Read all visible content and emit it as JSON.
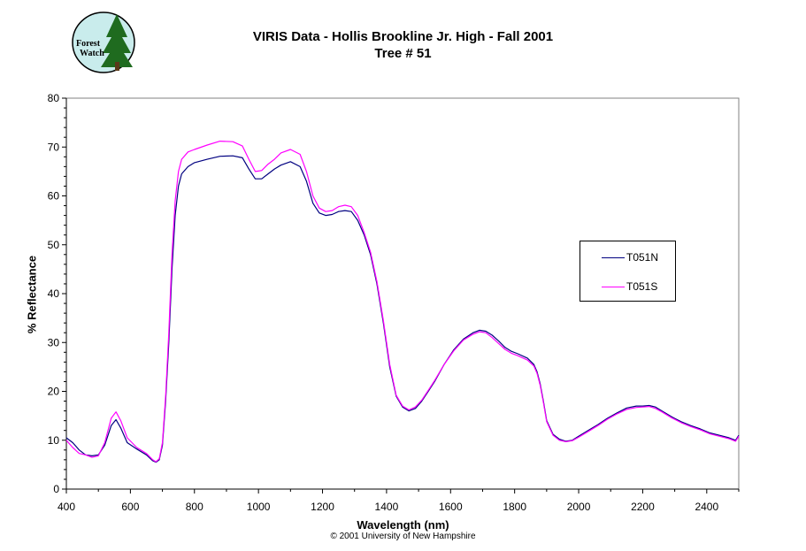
{
  "logo": {
    "text_line1": "Forest",
    "text_line2": "Watch"
  },
  "colors": {
    "T051N": "#000080",
    "T051S": "#ff00ff",
    "logo_bg": "#c9ecec",
    "tree": "#1f6b1f"
  },
  "chart_data": {
    "type": "line",
    "title": "VIRIS Data - Hollis Brookline Jr. High - Fall 2001",
    "subtitle": "Tree # 51",
    "xlabel": "Wavelength (nm)",
    "ylabel": "% Reflectance",
    "footer": "© 2001 University of New Hampshire",
    "xlim": [
      400,
      2500
    ],
    "ylim": [
      0,
      80
    ],
    "xticks": [
      400,
      600,
      800,
      1000,
      1200,
      1400,
      1600,
      1800,
      2000,
      2200,
      2400
    ],
    "yticks": [
      0,
      10,
      20,
      30,
      40,
      50,
      60,
      70,
      80
    ],
    "grid": false,
    "legend_position": "right",
    "series": [
      {
        "name": "T051N",
        "color": "#000080",
        "points": [
          [
            400,
            10.5
          ],
          [
            420,
            9.5
          ],
          [
            440,
            8
          ],
          [
            460,
            7
          ],
          [
            480,
            6.8
          ],
          [
            500,
            7
          ],
          [
            520,
            9
          ],
          [
            540,
            13
          ],
          [
            555,
            14.2
          ],
          [
            570,
            12.5
          ],
          [
            590,
            9.5
          ],
          [
            620,
            8.2
          ],
          [
            650,
            7
          ],
          [
            670,
            5.8
          ],
          [
            680,
            5.5
          ],
          [
            690,
            6
          ],
          [
            700,
            9
          ],
          [
            710,
            18
          ],
          [
            720,
            30
          ],
          [
            730,
            45
          ],
          [
            740,
            56
          ],
          [
            750,
            62
          ],
          [
            760,
            64.5
          ],
          [
            780,
            66
          ],
          [
            800,
            66.8
          ],
          [
            840,
            67.5
          ],
          [
            880,
            68.1
          ],
          [
            920,
            68.2
          ],
          [
            950,
            67.8
          ],
          [
            970,
            65.5
          ],
          [
            990,
            63.5
          ],
          [
            1010,
            63.5
          ],
          [
            1030,
            64.5
          ],
          [
            1050,
            65.5
          ],
          [
            1070,
            66.3
          ],
          [
            1100,
            67
          ],
          [
            1130,
            66
          ],
          [
            1150,
            63
          ],
          [
            1170,
            58.5
          ],
          [
            1190,
            56.5
          ],
          [
            1210,
            56
          ],
          [
            1230,
            56.2
          ],
          [
            1250,
            56.8
          ],
          [
            1270,
            57
          ],
          [
            1290,
            56.8
          ],
          [
            1310,
            55
          ],
          [
            1330,
            52
          ],
          [
            1350,
            48
          ],
          [
            1370,
            42
          ],
          [
            1390,
            34
          ],
          [
            1410,
            25
          ],
          [
            1430,
            19
          ],
          [
            1450,
            16.8
          ],
          [
            1470,
            16
          ],
          [
            1490,
            16.5
          ],
          [
            1510,
            18
          ],
          [
            1530,
            20
          ],
          [
            1550,
            22
          ],
          [
            1580,
            25.5
          ],
          [
            1610,
            28.5
          ],
          [
            1640,
            30.7
          ],
          [
            1670,
            32
          ],
          [
            1690,
            32.5
          ],
          [
            1710,
            32.3
          ],
          [
            1730,
            31.5
          ],
          [
            1750,
            30.3
          ],
          [
            1770,
            29
          ],
          [
            1790,
            28.2
          ],
          [
            1810,
            27.7
          ],
          [
            1840,
            26.8
          ],
          [
            1860,
            25.5
          ],
          [
            1870,
            24
          ],
          [
            1880,
            21.5
          ],
          [
            1890,
            18
          ],
          [
            1900,
            14
          ],
          [
            1920,
            11.2
          ],
          [
            1940,
            10.2
          ],
          [
            1960,
            9.8
          ],
          [
            1980,
            10
          ],
          [
            2000,
            10.8
          ],
          [
            2030,
            12
          ],
          [
            2060,
            13.2
          ],
          [
            2090,
            14.5
          ],
          [
            2120,
            15.6
          ],
          [
            2150,
            16.6
          ],
          [
            2180,
            17
          ],
          [
            2200,
            17
          ],
          [
            2220,
            17.1
          ],
          [
            2240,
            16.8
          ],
          [
            2260,
            16
          ],
          [
            2290,
            14.8
          ],
          [
            2320,
            13.8
          ],
          [
            2350,
            13
          ],
          [
            2380,
            12.3
          ],
          [
            2410,
            11.5
          ],
          [
            2440,
            11
          ],
          [
            2470,
            10.5
          ],
          [
            2490,
            10
          ],
          [
            2500,
            11
          ]
        ]
      },
      {
        "name": "T051S",
        "color": "#ff00ff",
        "points": [
          [
            400,
            10
          ],
          [
            420,
            8.5
          ],
          [
            440,
            7.3
          ],
          [
            460,
            7
          ],
          [
            480,
            6.5
          ],
          [
            500,
            6.8
          ],
          [
            520,
            9.5
          ],
          [
            540,
            14.5
          ],
          [
            555,
            15.8
          ],
          [
            570,
            14
          ],
          [
            590,
            10.5
          ],
          [
            620,
            8.5
          ],
          [
            650,
            7.3
          ],
          [
            670,
            6
          ],
          [
            680,
            5.6
          ],
          [
            690,
            6.2
          ],
          [
            700,
            9.5
          ],
          [
            710,
            19
          ],
          [
            720,
            32
          ],
          [
            730,
            48
          ],
          [
            740,
            59
          ],
          [
            750,
            65
          ],
          [
            760,
            67.5
          ],
          [
            780,
            69
          ],
          [
            800,
            69.5
          ],
          [
            840,
            70.4
          ],
          [
            880,
            71.2
          ],
          [
            920,
            71.1
          ],
          [
            950,
            70.2
          ],
          [
            970,
            67.5
          ],
          [
            990,
            65
          ],
          [
            1010,
            65.2
          ],
          [
            1030,
            66.5
          ],
          [
            1050,
            67.5
          ],
          [
            1070,
            68.8
          ],
          [
            1100,
            69.5
          ],
          [
            1130,
            68.5
          ],
          [
            1150,
            65
          ],
          [
            1170,
            60
          ],
          [
            1190,
            57.5
          ],
          [
            1210,
            56.8
          ],
          [
            1230,
            57
          ],
          [
            1250,
            57.8
          ],
          [
            1270,
            58.1
          ],
          [
            1290,
            57.8
          ],
          [
            1310,
            56
          ],
          [
            1330,
            52.5
          ],
          [
            1350,
            48.5
          ],
          [
            1370,
            42.5
          ],
          [
            1390,
            34.5
          ],
          [
            1410,
            25.5
          ],
          [
            1430,
            19.2
          ],
          [
            1450,
            17
          ],
          [
            1470,
            16.2
          ],
          [
            1490,
            16.8
          ],
          [
            1510,
            18.2
          ],
          [
            1530,
            20.2
          ],
          [
            1550,
            22.2
          ],
          [
            1580,
            25.5
          ],
          [
            1610,
            28.3
          ],
          [
            1640,
            30.5
          ],
          [
            1670,
            31.7
          ],
          [
            1690,
            32.2
          ],
          [
            1710,
            32
          ],
          [
            1730,
            31
          ],
          [
            1750,
            29.8
          ],
          [
            1770,
            28.6
          ],
          [
            1790,
            27.8
          ],
          [
            1810,
            27.3
          ],
          [
            1840,
            26.4
          ],
          [
            1860,
            25.2
          ],
          [
            1870,
            23.7
          ],
          [
            1880,
            21.2
          ],
          [
            1890,
            17.7
          ],
          [
            1900,
            13.8
          ],
          [
            1920,
            11
          ],
          [
            1940,
            10
          ],
          [
            1960,
            9.7
          ],
          [
            1980,
            9.9
          ],
          [
            2000,
            10.6
          ],
          [
            2030,
            11.8
          ],
          [
            2060,
            13
          ],
          [
            2090,
            14.3
          ],
          [
            2120,
            15.4
          ],
          [
            2150,
            16.3
          ],
          [
            2180,
            16.7
          ],
          [
            2200,
            16.8
          ],
          [
            2220,
            16.9
          ],
          [
            2240,
            16.5
          ],
          [
            2260,
            15.8
          ],
          [
            2290,
            14.6
          ],
          [
            2320,
            13.6
          ],
          [
            2350,
            12.8
          ],
          [
            2380,
            12.1
          ],
          [
            2410,
            11.3
          ],
          [
            2440,
            10.8
          ],
          [
            2470,
            10.3
          ],
          [
            2490,
            9.8
          ],
          [
            2500,
            10.8
          ]
        ]
      }
    ]
  }
}
